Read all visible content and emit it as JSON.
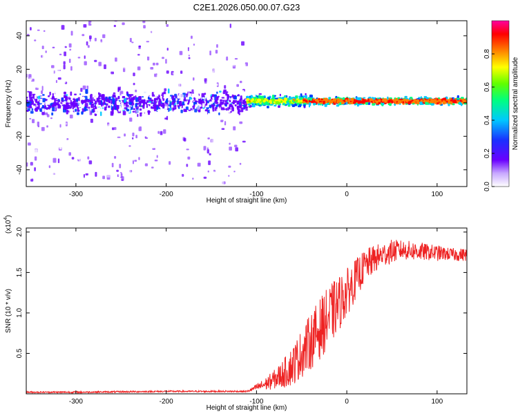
{
  "title": "C2E1.2026.050.00.07.G23",
  "colors": {
    "snr_line": "#ee2222",
    "axis": "#000000"
  },
  "chart_data": [
    {
      "type": "heatmap",
      "xlabel": "Height of straight line (km)",
      "ylabel": "Frequency (Hz)",
      "xlim": [
        -355,
        133
      ],
      "ylim": [
        -50,
        49
      ],
      "xticks": [
        -300,
        -200,
        -100,
        0,
        100
      ],
      "xtick_labels": [
        "-300",
        "-200",
        "-100",
        "0",
        "100"
      ],
      "yticks": [
        40,
        20,
        0,
        -20,
        -40
      ],
      "ytick_labels": [
        "40",
        "20",
        "0",
        "-20",
        "-40"
      ],
      "colorbar": {
        "label": "Normalized spectral amplitude",
        "range": [
          0,
          1
        ],
        "ticks": [
          0.0,
          0.2,
          0.4,
          0.6,
          0.8
        ],
        "tick_labels": [
          "0.0",
          "0.2",
          "0.4",
          "0.6",
          "0.8"
        ],
        "colormap": [
          "#ffffff",
          "#6a00ff",
          "#0040ff",
          "#00c8ff",
          "#00ff80",
          "#80ff00",
          "#ffff00",
          "#ff8000",
          "#ff0000",
          "#ff00a0"
        ]
      },
      "regions": [
        {
          "x_range": [
            -355,
            -110
          ],
          "description_level": "noise",
          "freq_spread": 49,
          "core_band": [
            -8,
            8
          ],
          "core_amplitude": 0.15
        },
        {
          "x_range": [
            -110,
            133
          ],
          "description_level": "signal",
          "freq_spread": 8,
          "core_band": [
            -2,
            4
          ],
          "core_amplitude": 0.95
        }
      ]
    },
    {
      "type": "line",
      "xlabel": "Height of straight line (km)",
      "ylabel": "SNR (10 * v/v)",
      "multiplier_label": "(x10",
      "multiplier_exponent": "4",
      "multiplier_suffix": ")",
      "xlim": [
        -355,
        133
      ],
      "ylim": [
        0,
        2.05
      ],
      "xticks": [
        -300,
        -200,
        -100,
        0,
        100
      ],
      "xtick_labels": [
        "-300",
        "-200",
        "-100",
        "0",
        "100"
      ],
      "yticks": [
        0.5,
        1.0,
        1.5,
        2.0
      ],
      "ytick_labels": [
        "0.5",
        "1.0",
        "1.5",
        "2.0"
      ],
      "series": [
        {
          "name": "SNR",
          "x": [
            -355,
            -300,
            -200,
            -110,
            -100,
            -90,
            -80,
            -70,
            -60,
            -50,
            -40,
            -30,
            -20,
            -10,
            0,
            10,
            20,
            30,
            40,
            50,
            60,
            70,
            80,
            90,
            100,
            110,
            120,
            133
          ],
          "y": [
            0.02,
            0.02,
            0.03,
            0.03,
            0.08,
            0.12,
            0.18,
            0.25,
            0.35,
            0.5,
            0.65,
            0.8,
            0.95,
            1.1,
            1.25,
            1.42,
            1.58,
            1.66,
            1.72,
            1.76,
            1.78,
            1.77,
            1.76,
            1.75,
            1.74,
            1.73,
            1.72,
            1.72
          ],
          "noise_amplitude": [
            0.01,
            0.01,
            0.01,
            0.01,
            0.04,
            0.08,
            0.12,
            0.18,
            0.25,
            0.3,
            0.35,
            0.38,
            0.38,
            0.35,
            0.3,
            0.25,
            0.2,
            0.18,
            0.15,
            0.15,
            0.12,
            0.12,
            0.12,
            0.1,
            0.1,
            0.08,
            0.08,
            0.08
          ]
        }
      ]
    }
  ]
}
